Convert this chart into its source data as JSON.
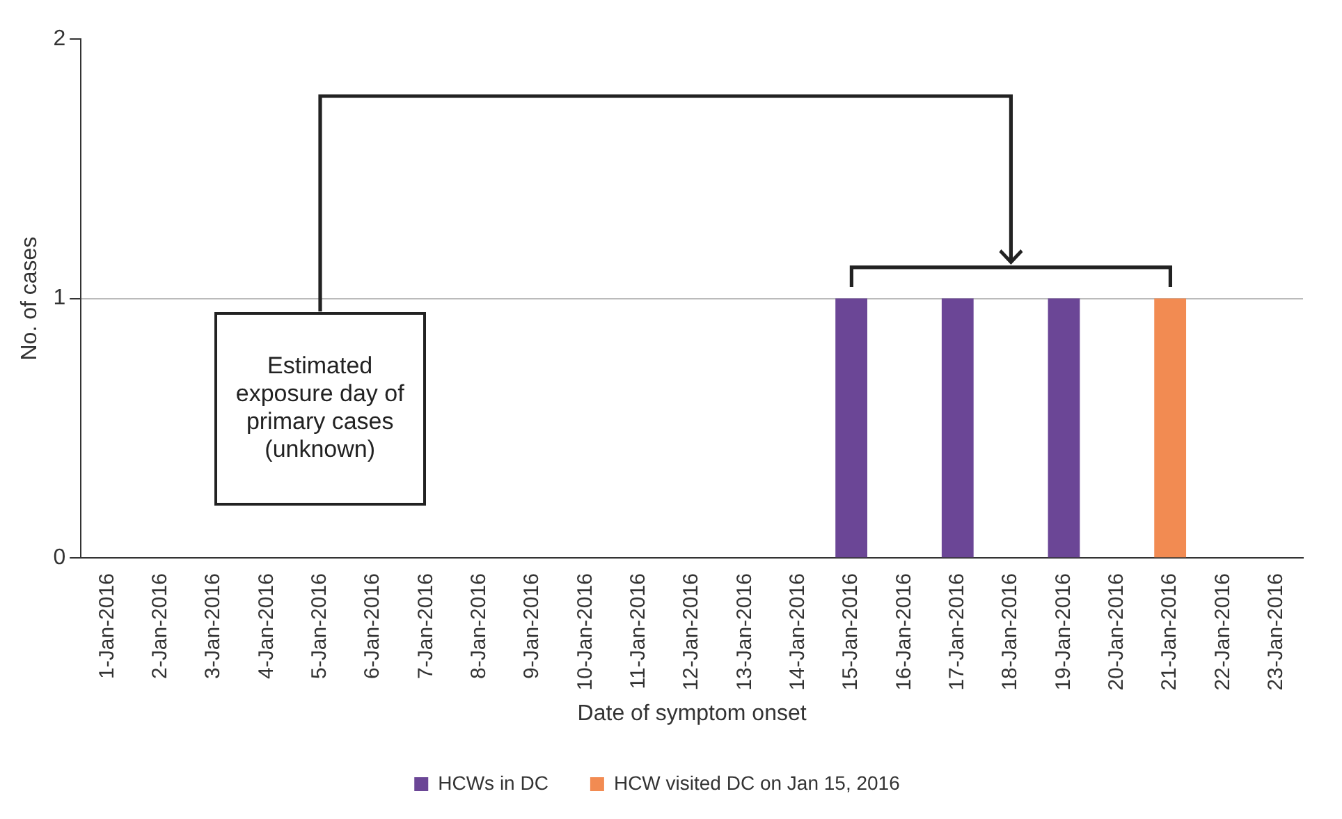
{
  "chart_data": {
    "type": "bar",
    "xlabel": "Date of symptom onset",
    "ylabel": "No. of cases",
    "categories": [
      "1-Jan-2016",
      "2-Jan-2016",
      "3-Jan-2016",
      "4-Jan-2016",
      "5-Jan-2016",
      "6-Jan-2016",
      "7-Jan-2016",
      "8-Jan-2016",
      "9-Jan-2016",
      "10-Jan-2016",
      "11-Jan-2016",
      "12-Jan-2016",
      "13-Jan-2016",
      "14-Jan-2016",
      "15-Jan-2016",
      "16-Jan-2016",
      "17-Jan-2016",
      "18-Jan-2016",
      "19-Jan-2016",
      "20-Jan-2016",
      "21-Jan-2016",
      "22-Jan-2016",
      "23-Jan-2016"
    ],
    "series": [
      {
        "name": "HCWs in DC",
        "color": "#6b4696",
        "values": [
          0,
          0,
          0,
          0,
          0,
          0,
          0,
          0,
          0,
          0,
          0,
          0,
          0,
          0,
          1,
          0,
          1,
          0,
          1,
          0,
          0,
          0,
          0
        ]
      },
      {
        "name": "HCW visited DC on Jan 15, 2016",
        "color": "#f28b52",
        "values": [
          0,
          0,
          0,
          0,
          0,
          0,
          0,
          0,
          0,
          0,
          0,
          0,
          0,
          0,
          0,
          0,
          0,
          0,
          0,
          0,
          1,
          0,
          0
        ]
      }
    ],
    "stacked": true,
    "ylim": [
      0,
      2
    ],
    "yticks": [
      0,
      1,
      2
    ],
    "grid": "y",
    "legend": "bottom",
    "annotations": [
      "Estimated exposure day of primary cases (unknown)"
    ]
  }
}
